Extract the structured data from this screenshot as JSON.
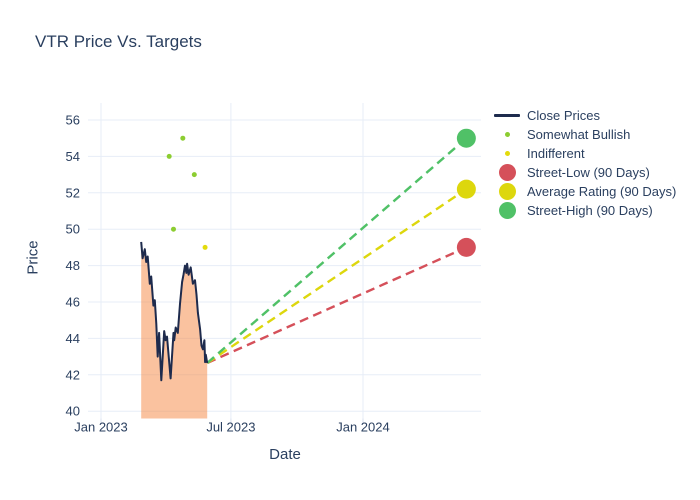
{
  "title": "VTR Price Vs. Targets",
  "legend": {
    "items": [
      {
        "label": "Close Prices",
        "swatch": "line",
        "color": "#1e2b4d"
      },
      {
        "label": "Somewhat Bullish",
        "swatch": "dot",
        "color": "#8ccd31"
      },
      {
        "label": "Indifferent",
        "swatch": "dot",
        "color": "#e3db0c"
      },
      {
        "label": "Street-Low (90 Days)",
        "swatch": "circle",
        "color": "#d5505a"
      },
      {
        "label": "Average Rating (90 Days)",
        "swatch": "circle",
        "color": "#ddd70d"
      },
      {
        "label": "Street-High (90 Days)",
        "swatch": "circle",
        "color": "#50c167"
      }
    ]
  },
  "colors": {
    "text": "#2a3f5f",
    "grid": "#e7edf7",
    "background": "#ffffff",
    "close_line": "#1e2b4d",
    "area_fill": "rgba(246,134,64,0.5)"
  },
  "chart_data": {
    "type": "line",
    "title": "VTR Price Vs. Targets",
    "xlabel": "Date",
    "ylabel": "Price",
    "grid": true,
    "legend_position": "top-right",
    "y_ticks": [
      56,
      54,
      52,
      50,
      48,
      46,
      44,
      42,
      40
    ],
    "y_range": [
      39.6,
      56.9
    ],
    "x_ticks": [
      {
        "label": "Jan 2023",
        "date": "2023-01-01"
      },
      {
        "label": "Jul 2023",
        "date": "2023-07-01"
      },
      {
        "label": "Jan 2024",
        "date": "2024-01-01"
      }
    ],
    "x_range": [
      "2022-12-14",
      "2024-06-13"
    ],
    "series": [
      {
        "name": "Close Prices",
        "type": "line",
        "color": "#1e2b4d",
        "fill": "rgba(246,134,64,0.5)",
        "points": [
          [
            "2023-02-26",
            49.3
          ],
          [
            "2023-02-28",
            48.4
          ],
          [
            "2023-03-03",
            48.9
          ],
          [
            "2023-03-05",
            48.2
          ],
          [
            "2023-03-07",
            48.5
          ],
          [
            "2023-03-10",
            47.0
          ],
          [
            "2023-03-12",
            47.4
          ],
          [
            "2023-03-15",
            45.8
          ],
          [
            "2023-03-17",
            46.1
          ],
          [
            "2023-03-19",
            44.8
          ],
          [
            "2023-03-21",
            43.0
          ],
          [
            "2023-03-23",
            44.3
          ],
          [
            "2023-03-26",
            41.7
          ],
          [
            "2023-03-30",
            44.4
          ],
          [
            "2023-04-01",
            43.9
          ],
          [
            "2023-04-03",
            44.1
          ],
          [
            "2023-04-08",
            41.8
          ],
          [
            "2023-04-12",
            44.3
          ],
          [
            "2023-04-13",
            43.9
          ],
          [
            "2023-04-15",
            44.6
          ],
          [
            "2023-04-18",
            44.3
          ],
          [
            "2023-04-21",
            45.9
          ],
          [
            "2023-04-24",
            47.1
          ],
          [
            "2023-04-26",
            47.5
          ],
          [
            "2023-04-28",
            48.0
          ],
          [
            "2023-04-30",
            47.6
          ],
          [
            "2023-05-01",
            48.1
          ],
          [
            "2023-05-03",
            47.5
          ],
          [
            "2023-05-06",
            47.9
          ],
          [
            "2023-05-09",
            47.0
          ],
          [
            "2023-05-12",
            47.2
          ],
          [
            "2023-05-14",
            46.4
          ],
          [
            "2023-05-16",
            45.4
          ],
          [
            "2023-05-19",
            44.5
          ],
          [
            "2023-05-21",
            43.6
          ],
          [
            "2023-05-23",
            43.4
          ],
          [
            "2023-05-25",
            43.9
          ],
          [
            "2023-05-26",
            42.7
          ],
          [
            "2023-05-27",
            43.1
          ],
          [
            "2023-05-29",
            42.65
          ]
        ]
      },
      {
        "name": "Somewhat Bullish",
        "type": "scatter",
        "color": "#8ccd31",
        "marker_size": 5,
        "points": [
          [
            "2023-04-06",
            54
          ],
          [
            "2023-04-12",
            50
          ],
          [
            "2023-04-25",
            55
          ],
          [
            "2023-05-11",
            53
          ]
        ]
      },
      {
        "name": "Indifferent",
        "type": "scatter",
        "color": "#e3db0c",
        "marker_size": 5,
        "points": [
          [
            "2023-05-26",
            49
          ]
        ]
      },
      {
        "name": "Street-Low (90 Days)",
        "type": "target",
        "color": "#d5505a",
        "marker_size": 19,
        "point": [
          "2024-05-24",
          49
        ]
      },
      {
        "name": "Average Rating (90 Days)",
        "type": "target",
        "color": "#ddd70d",
        "marker_size": 19,
        "point": [
          "2024-05-24",
          52.2
        ]
      },
      {
        "name": "Street-High (90 Days)",
        "type": "target",
        "color": "#50c167",
        "marker_size": 19,
        "point": [
          "2024-05-24",
          55
        ]
      }
    ]
  }
}
